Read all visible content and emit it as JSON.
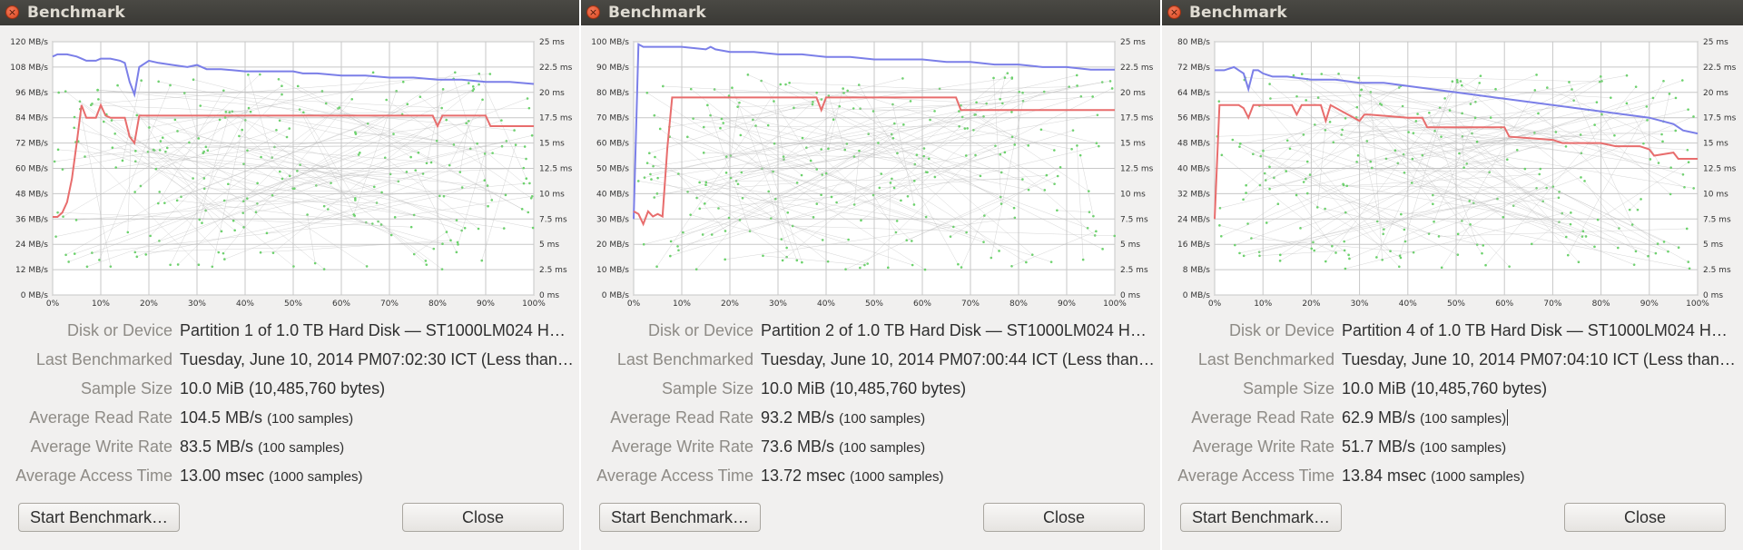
{
  "colors": {
    "read": "#7b7fe8",
    "write": "#e86d6d",
    "access": "#6bd26b",
    "grid": "#c7c7c7"
  },
  "icons": {
    "close": "close-icon"
  },
  "labels": {
    "disk": "Disk or Device",
    "last": "Last Benchmarked",
    "sample": "Sample Size",
    "read": "Average Read Rate",
    "write": "Average Write Rate",
    "access": "Average Access Time"
  },
  "buttons": {
    "start": "Start Benchmark…",
    "close": "Close"
  },
  "windows": [
    {
      "title": "Benchmark",
      "disk": "Partition 1 of 1.0 TB Hard Disk — ST1000LM024 H…",
      "last": "Tuesday, June 10, 2014 PM07:02:30 ICT (Less than…",
      "sample": "10.0 MiB (10,485,760 bytes)",
      "read_value": "104.5 MB/s",
      "read_samples": "(100 samples)",
      "write_value": "83.5 MB/s",
      "write_samples": "(100 samples)",
      "access_value": "13.00 msec",
      "access_samples": "(1000 samples)",
      "chart_data": {
        "type": "line",
        "x_ticks": [
          "0%",
          "10%",
          "20%",
          "30%",
          "40%",
          "50%",
          "60%",
          "70%",
          "80%",
          "90%",
          "100%"
        ],
        "y_left_ticks": [
          "0 MB/s",
          "12 MB/s",
          "24 MB/s",
          "36 MB/s",
          "48 MB/s",
          "60 MB/s",
          "72 MB/s",
          "84 MB/s",
          "96 MB/s",
          "108 MB/s",
          "120 MB/s"
        ],
        "y_right_ticks": [
          "0 ms",
          "2.5 ms",
          "5 ms",
          "7.5 ms",
          "10 ms",
          "12.5 ms",
          "15 ms",
          "17.5 ms",
          "20 ms",
          "22.5 ms",
          "25 ms"
        ],
        "ylim": [
          0,
          120
        ],
        "series": [
          {
            "key": "read",
            "x": [
              0,
              1,
              3,
              5,
              6,
              7,
              9,
              10,
              12,
              14,
              15,
              16,
              17,
              18,
              20,
              22,
              25,
              28,
              30,
              32,
              35,
              40,
              45,
              50,
              52,
              55,
              60,
              65,
              70,
              75,
              80,
              85,
              90,
              95,
              100
            ],
            "values": [
              113,
              114,
              114,
              113,
              112,
              111,
              111,
              112,
              112,
              111,
              110,
              101,
              95,
              108,
              111,
              110,
              109,
              108,
              109,
              107,
              107,
              106,
              106,
              106,
              105,
              105,
              104,
              104,
              103,
              103,
              102,
              102,
              101,
              101,
              100
            ]
          },
          {
            "key": "write",
            "x": [
              0,
              1,
              2,
              3,
              4,
              5,
              6,
              7,
              8,
              9,
              10,
              11,
              12,
              14,
              15,
              16,
              17,
              18,
              19,
              20,
              25,
              30,
              40,
              50,
              60,
              70,
              78,
              79,
              80,
              81,
              82,
              90,
              91,
              92,
              100
            ],
            "values": [
              37,
              37,
              39,
              44,
              55,
              72,
              90,
              84,
              84,
              84,
              90,
              85,
              84,
              84,
              84,
              75,
              72,
              85,
              85,
              85,
              85,
              85,
              85,
              85,
              85,
              85,
              85,
              85,
              80,
              85,
              85,
              85,
              80,
              80,
              80
            ]
          }
        ]
      }
    },
    {
      "title": "Benchmark",
      "disk": "Partition 2 of 1.0 TB Hard Disk — ST1000LM024 H…",
      "last": "Tuesday, June 10, 2014 PM07:00:44 ICT (Less than…",
      "sample": "10.0 MiB (10,485,760 bytes)",
      "read_value": "93.2 MB/s",
      "read_samples": "(100 samples)",
      "write_value": "73.6 MB/s",
      "write_samples": "(100 samples)",
      "access_value": "13.72 msec",
      "access_samples": "(1000 samples)",
      "chart_data": {
        "type": "line",
        "x_ticks": [
          "0%",
          "10%",
          "20%",
          "30%",
          "40%",
          "50%",
          "60%",
          "70%",
          "80%",
          "90%",
          "100%"
        ],
        "y_left_ticks": [
          "0 MB/s",
          "10 MB/s",
          "20 MB/s",
          "30 MB/s",
          "40 MB/s",
          "50 MB/s",
          "60 MB/s",
          "70 MB/s",
          "80 MB/s",
          "90 MB/s",
          "100 MB/s"
        ],
        "y_right_ticks": [
          "0 ms",
          "2.5 ms",
          "5 ms",
          "7.5 ms",
          "10 ms",
          "12.5 ms",
          "15 ms",
          "17.5 ms",
          "20 ms",
          "22.5 ms",
          "25 ms"
        ],
        "ylim": [
          0,
          100
        ],
        "series": [
          {
            "key": "read",
            "x": [
              0,
              1,
              2,
              5,
              10,
              15,
              16,
              17,
              20,
              25,
              30,
              35,
              40,
              45,
              50,
              55,
              60,
              65,
              70,
              75,
              80,
              85,
              90,
              95,
              100
            ],
            "values": [
              30,
              99,
              98,
              98,
              98,
              97,
              98,
              97,
              96,
              96,
              95,
              95,
              94,
              94,
              93,
              93,
              93,
              92,
              92,
              91,
              91,
              90,
              90,
              89,
              89
            ]
          },
          {
            "key": "write",
            "x": [
              0,
              1,
              2,
              3,
              4,
              5,
              6,
              7,
              8,
              9,
              38,
              39,
              40,
              41,
              42,
              67,
              68,
              70,
              80,
              90,
              100
            ],
            "values": [
              33,
              32,
              28,
              33,
              31,
              32,
              31,
              58,
              78,
              78,
              78,
              73,
              78,
              78,
              78,
              78,
              73,
              73,
              73,
              73,
              73
            ]
          }
        ]
      }
    },
    {
      "title": "Benchmark",
      "disk": "Partition 4 of 1.0 TB Hard Disk — ST1000LM024 H…",
      "last": "Tuesday, June 10, 2014 PM07:04:10 ICT (Less than…",
      "sample": "10.0 MiB (10,485,760 bytes)",
      "read_value": "62.9 MB/s",
      "read_samples": "(100 samples)",
      "write_value": "51.7 MB/s",
      "write_samples": "(100 samples)",
      "access_value": "13.84 msec",
      "access_samples": "(1000 samples)",
      "chart_data": {
        "type": "line",
        "x_ticks": [
          "0%",
          "10%",
          "20%",
          "30%",
          "40%",
          "50%",
          "60%",
          "70%",
          "80%",
          "90%",
          "100%"
        ],
        "y_left_ticks": [
          "0 MB/s",
          "8 MB/s",
          "16 MB/s",
          "24 MB/s",
          "32 MB/s",
          "40 MB/s",
          "48 MB/s",
          "56 MB/s",
          "64 MB/s",
          "72 MB/s",
          "80 MB/s"
        ],
        "y_right_ticks": [
          "0 ms",
          "2.5 ms",
          "5 ms",
          "7.5 ms",
          "10 ms",
          "12.5 ms",
          "15 ms",
          "17.5 ms",
          "20 ms",
          "22.5 ms",
          "25 ms"
        ],
        "ylim": [
          0,
          80
        ],
        "series": [
          {
            "key": "read",
            "x": [
              0,
              2,
              4,
              5,
              6,
              7,
              8,
              9,
              10,
              12,
              15,
              20,
              25,
              30,
              35,
              40,
              45,
              50,
              55,
              60,
              65,
              70,
              75,
              80,
              85,
              90,
              95,
              97,
              100
            ],
            "values": [
              71,
              71,
              72,
              71,
              70,
              65,
              71,
              71,
              70,
              69,
              69,
              68,
              68,
              67,
              67,
              66,
              65,
              64,
              63,
              62,
              61,
              60,
              59,
              58,
              57,
              56,
              54,
              52,
              51
            ]
          },
          {
            "key": "write",
            "x": [
              0,
              1,
              2,
              5,
              6,
              7,
              8,
              10,
              12,
              16,
              17,
              18,
              22,
              23,
              24,
              30,
              31,
              32,
              40,
              43,
              44,
              55,
              60,
              61,
              70,
              72,
              80,
              83,
              88,
              90,
              91,
              95,
              96,
              100
            ],
            "values": [
              24,
              60,
              60,
              60,
              59,
              56,
              60,
              60,
              60,
              60,
              57,
              60,
              60,
              55,
              60,
              55,
              57,
              57,
              56,
              56,
              53,
              53,
              53,
              50,
              49,
              48,
              48,
              47,
              47,
              46,
              44,
              45,
              43,
              43
            ]
          }
        ]
      }
    }
  ]
}
